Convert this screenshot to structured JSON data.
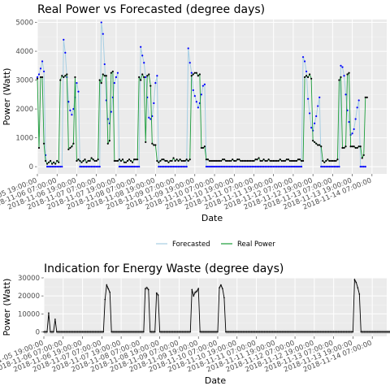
{
  "chart_data": [
    {
      "type": "line",
      "title": "Real Power vs Forecasted (degree days)",
      "xlabel": "Date",
      "ylabel": "Power (Watt)",
      "ylim": [
        -250,
        5100
      ],
      "yticks": [
        0,
        1000,
        2000,
        3000,
        4000,
        5000
      ],
      "xlim": [
        0,
        213
      ],
      "xtick_labels": [
        "2018-11-05 19:00:00",
        "2018-11-06 07:00:00",
        "2018-11-06 19:00:00",
        "2018-11-07 07:00:00",
        "2018-11-07 19:00:00",
        "2018-11-08 07:00:00",
        "2018-11-08 19:00:00",
        "2018-11-09 07:00:00",
        "2018-11-09 19:00:00",
        "2018-11-10 07:00:00",
        "2018-11-10 19:00:00",
        "2018-11-11 07:00:00",
        "2018-11-11 19:00:00",
        "2018-11-12 07:00:00",
        "2018-11-12 19:00:00",
        "2018-11-13 07:00:00",
        "2018-11-13 19:00:00",
        "2018-11-14 07:00:00"
      ],
      "xtick_positions": [
        0,
        12,
        24,
        36,
        48,
        60,
        72,
        84,
        96,
        108,
        120,
        132,
        144,
        156,
        168,
        180,
        192,
        204
      ],
      "grid": true,
      "legend": "bottom",
      "series": [
        {
          "name": "Forecasted",
          "color": "#a6cee3",
          "marker_color": "#0000ff",
          "values": [
            3100,
            3200,
            3400,
            3650,
            3300,
            400,
            0,
            0,
            0,
            0,
            0,
            0,
            0,
            0,
            0,
            0,
            4400,
            3950,
            3100,
            2250,
            1950,
            1800,
            2000,
            2400,
            2900,
            2600,
            0,
            0,
            0,
            0,
            0,
            0,
            0,
            0,
            0,
            0,
            0,
            0,
            0,
            5000,
            4600,
            3550,
            2300,
            1650,
            1500,
            1900,
            2400,
            2900,
            3100,
            3250,
            0,
            0,
            0,
            0,
            0,
            0,
            0,
            0,
            0,
            0,
            0,
            0,
            0,
            4150,
            3850,
            3600,
            3100,
            2400,
            1700,
            1650,
            1750,
            2200,
            2900,
            3150,
            0,
            0,
            0,
            0,
            0,
            0,
            0,
            0,
            0,
            0,
            0,
            0,
            0,
            0,
            0,
            0,
            0,
            0,
            4100,
            3600,
            3250,
            2650,
            2450,
            2250,
            2050,
            2200,
            2500,
            2800,
            2850,
            0,
            0,
            0,
            0,
            0,
            0,
            0,
            0,
            0,
            0,
            0,
            0,
            0,
            0,
            0,
            0,
            0,
            0,
            0,
            0,
            0,
            0,
            0,
            0,
            0,
            0,
            0,
            0,
            0,
            0,
            0,
            0,
            0,
            0,
            0,
            0,
            0,
            0,
            0,
            0,
            0,
            0,
            0,
            0,
            0,
            0,
            0,
            0,
            0,
            0,
            0,
            0,
            0,
            0,
            0,
            0,
            0,
            0,
            0,
            3800,
            3650,
            3300,
            2350,
            1850,
            1350,
            1250,
            1500,
            1750,
            2100,
            2400,
            0,
            0,
            0,
            0,
            0,
            0,
            0,
            0,
            0,
            0,
            0,
            0,
            3500,
            3450,
            3150,
            2500,
            1950,
            1550,
            1100,
            1150,
            1300,
            1650,
            2050,
            2300,
            0,
            0,
            0,
            0
          ]
        },
        {
          "name": "Real Power",
          "color": "#1a9c3a",
          "marker_color": "#000000",
          "values": [
            3050,
            650,
            3100,
            3100,
            800,
            200,
            100,
            150,
            200,
            100,
            150,
            100,
            200,
            150,
            3000,
            3150,
            3100,
            3150,
            3200,
            600,
            650,
            700,
            800,
            3100,
            200,
            250,
            200,
            150,
            200,
            250,
            150,
            200,
            200,
            300,
            250,
            200,
            200,
            250,
            3000,
            2900,
            3200,
            3150,
            3150,
            800,
            900,
            3250,
            3300,
            200,
            200,
            200,
            250,
            200,
            250,
            150,
            150,
            200,
            250,
            200,
            150,
            250,
            250,
            250,
            3100,
            3000,
            3200,
            3100,
            850,
            3150,
            3200,
            2800,
            800,
            750,
            750,
            200,
            150,
            200,
            250,
            250,
            200,
            200,
            150,
            200,
            200,
            300,
            200,
            250,
            200,
            250,
            200,
            200,
            200,
            250,
            200,
            250,
            3150,
            3200,
            3250,
            3250,
            3150,
            3200,
            650,
            650,
            700,
            250,
            250,
            200,
            200,
            200,
            200,
            200,
            200,
            200,
            200,
            250,
            250,
            200,
            200,
            200,
            200,
            250,
            200,
            200,
            250,
            250,
            200,
            200,
            200,
            200,
            200,
            200,
            200,
            200,
            200,
            250,
            250,
            300,
            200,
            200,
            250,
            200,
            200,
            250,
            200,
            200,
            200,
            200,
            200,
            200,
            250,
            200,
            200,
            200,
            250,
            250,
            200,
            200,
            200,
            200,
            200,
            250,
            250,
            200,
            200,
            3100,
            3150,
            3100,
            3200,
            3050,
            900,
            850,
            800,
            750,
            750,
            700,
            200,
            150,
            200,
            250,
            200,
            200,
            200,
            200,
            200,
            250,
            3000,
            3100,
            650,
            650,
            700,
            3200,
            3250,
            700,
            700,
            700,
            650,
            650,
            700,
            700,
            300,
            400,
            2400,
            2400
          ]
        }
      ]
    },
    {
      "type": "area",
      "title": "Indication for Energy Waste (degree days)",
      "xlabel": "Date",
      "ylabel": "Power (Watt)",
      "ylim": [
        -2500,
        30000
      ],
      "yticks": [
        0,
        10000,
        20000,
        30000
      ],
      "ytick_labels": [
        "0",
        "10000",
        "20000",
        "30000"
      ],
      "xlim": [
        0,
        213
      ],
      "xtick_labels": [
        "2018-11-05 19:00:00",
        "2018-11-06 07:00:00",
        "2018-11-06 19:00:00",
        "2018-11-07 07:00:00",
        "2018-11-07 19:00:00",
        "2018-11-08 07:00:00",
        "2018-11-08 19:00:00",
        "2018-11-09 07:00:00",
        "2018-11-09 19:00:00",
        "2018-11-10 07:00:00",
        "2018-11-10 19:00:00",
        "2018-11-11 07:00:00",
        "2018-11-11 19:00:00",
        "2018-11-12 07:00:00",
        "2018-11-12 19:00:00",
        "2018-11-13 07:00:00",
        "2018-11-13 19:00:00",
        "2018-11-14 07:00:00"
      ],
      "xtick_positions": [
        0,
        12,
        24,
        36,
        48,
        60,
        72,
        84,
        96,
        108,
        120,
        132,
        144,
        156,
        168,
        180,
        192,
        204
      ],
      "grid": true,
      "series": [
        {
          "color": "#000000",
          "band_color": "#b0b0b0",
          "values": [
            0,
            0,
            0,
            10500,
            0,
            0,
            0,
            7000,
            0,
            0,
            0,
            0,
            0,
            0,
            0,
            0,
            0,
            0,
            0,
            0,
            0,
            0,
            0,
            0,
            0,
            0,
            0,
            0,
            0,
            0,
            0,
            0,
            0,
            0,
            0,
            0,
            0,
            0,
            18000,
            26000,
            24000,
            22000,
            0,
            0,
            0,
            0,
            0,
            0,
            0,
            0,
            0,
            0,
            0,
            0,
            0,
            0,
            0,
            0,
            0,
            0,
            0,
            0,
            0,
            24000,
            24500,
            23500,
            0,
            0,
            0,
            0,
            21500,
            20500,
            0,
            0,
            0,
            0,
            0,
            0,
            0,
            0,
            0,
            0,
            0,
            0,
            0,
            0,
            0,
            0,
            0,
            0,
            0,
            0,
            23500,
            20000,
            22000,
            22500,
            24000,
            0,
            0,
            0,
            0,
            0,
            0,
            0,
            0,
            0,
            0,
            0,
            0,
            24500,
            26000,
            24000,
            19000,
            0,
            0,
            0,
            0,
            0,
            0,
            0,
            0,
            0,
            0,
            0,
            0,
            0,
            0,
            0,
            0,
            0,
            0,
            0,
            0,
            0,
            0,
            0,
            0,
            0,
            0,
            0,
            0,
            0,
            0,
            0,
            0,
            0,
            0,
            0,
            0,
            0,
            0,
            0,
            0,
            0,
            0,
            0,
            0,
            0,
            0,
            0,
            0,
            0,
            0,
            0,
            0,
            0,
            0,
            0,
            0,
            0,
            0,
            0,
            0,
            0,
            0,
            0,
            0,
            0,
            0,
            0,
            0,
            0,
            0,
            0,
            0,
            0,
            0,
            0,
            0,
            0,
            0,
            0,
            0,
            29000,
            27500,
            24500,
            21000,
            0,
            0,
            0,
            0,
            0,
            0,
            0,
            0,
            0,
            0,
            0,
            0,
            0,
            0,
            0,
            0,
            0,
            0,
            0,
            0,
            0,
            0,
            0,
            0
          ]
        }
      ]
    }
  ]
}
